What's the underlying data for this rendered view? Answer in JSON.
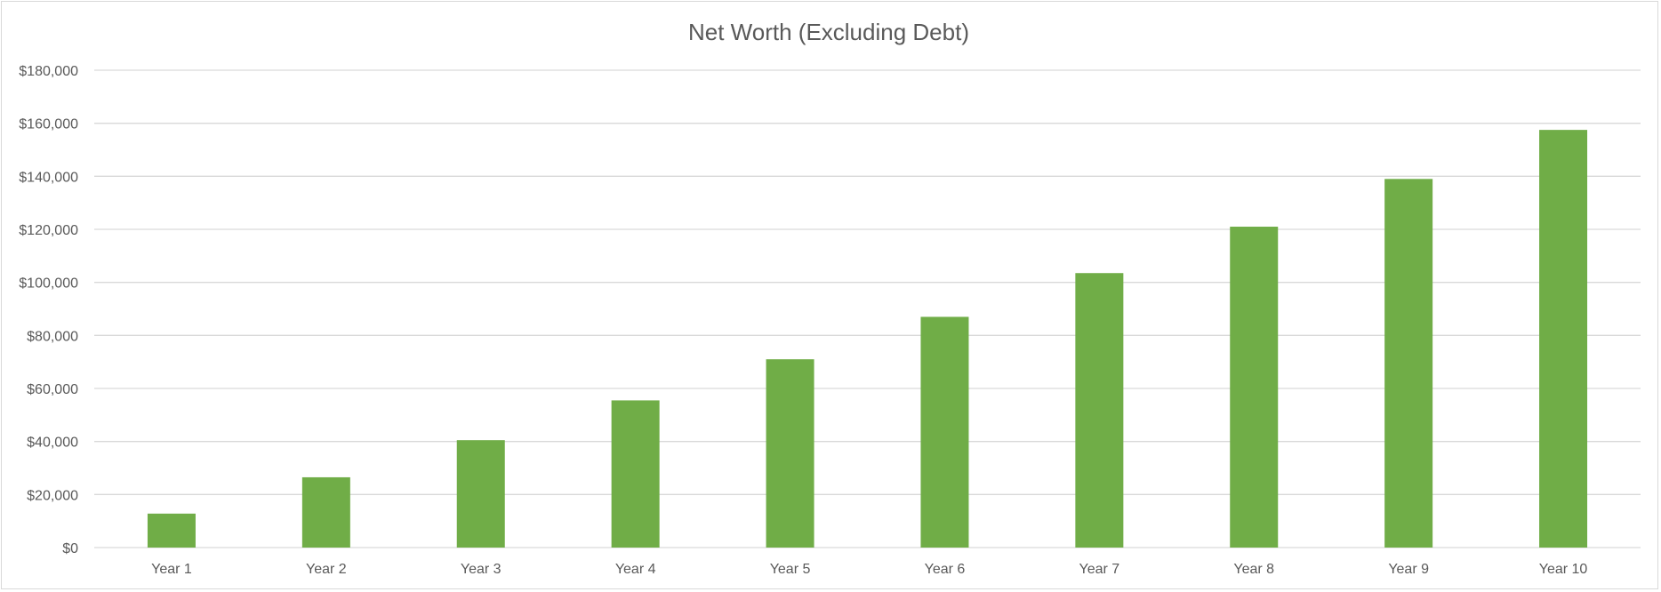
{
  "chart_data": {
    "type": "bar",
    "title": "Net Worth (Excluding Debt)",
    "xlabel": "",
    "ylabel": "",
    "categories": [
      "Year 1",
      "Year 2",
      "Year 3",
      "Year 4",
      "Year 5",
      "Year 6",
      "Year 7",
      "Year 8",
      "Year 9",
      "Year 10"
    ],
    "series": [
      {
        "values": [
          12800,
          26500,
          40500,
          55500,
          71000,
          87000,
          103500,
          121000,
          139000,
          157500
        ]
      }
    ],
    "ylim": [
      0,
      180000
    ],
    "y_ticks": [
      0,
      20000,
      40000,
      60000,
      80000,
      100000,
      120000,
      140000,
      160000,
      180000
    ],
    "y_tick_labels": [
      "$0",
      "$20,000",
      "$40,000",
      "$60,000",
      "$80,000",
      "$100,000",
      "$120,000",
      "$140,000",
      "$160,000",
      "$180,000"
    ],
    "grid": true,
    "legend": "none",
    "colors": {
      "bar": "#70ad47",
      "grid": "#d9d9d9",
      "text": "#595959"
    }
  }
}
